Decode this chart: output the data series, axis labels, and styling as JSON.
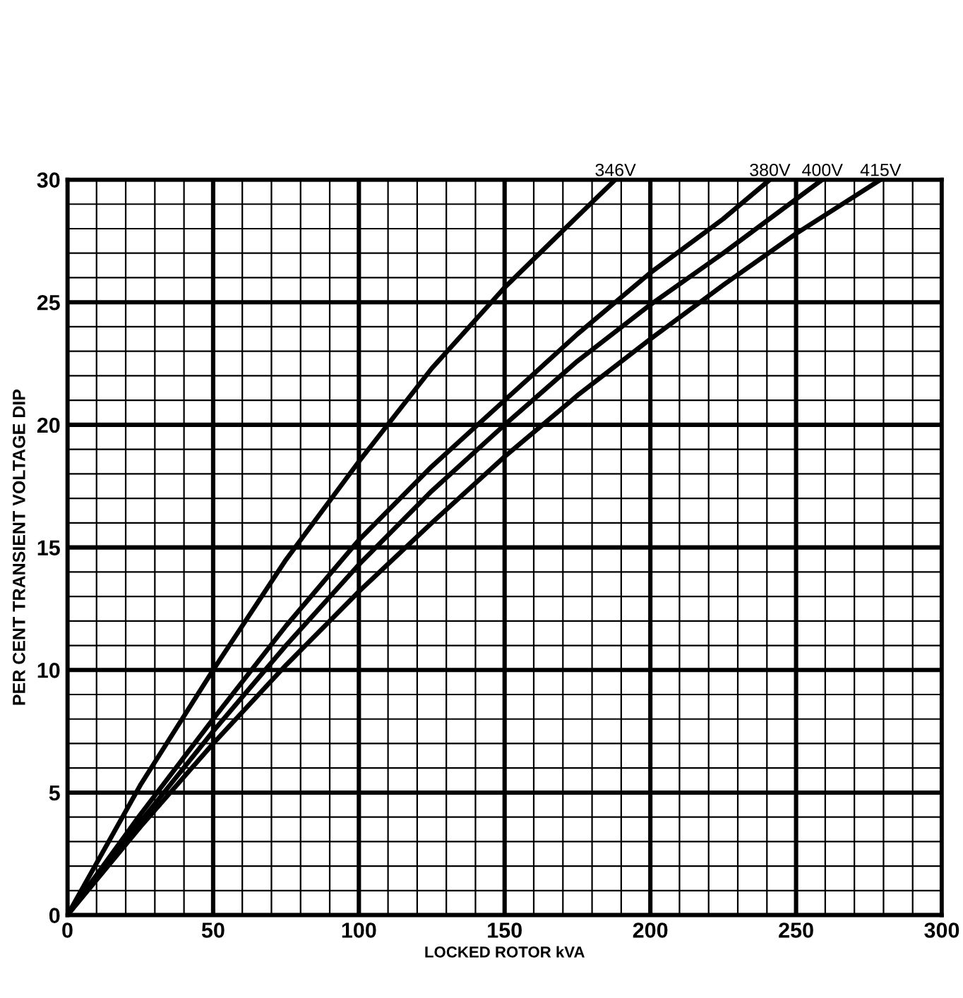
{
  "chart_data": {
    "type": "line",
    "xlabel": "LOCKED ROTOR kVA",
    "ylabel": "PER CENT TRANSIENT VOLTAGE DIP",
    "xlim": [
      0,
      300
    ],
    "ylim": [
      0,
      30
    ],
    "xticks": [
      0,
      {
        "value": 10,
        "label": null
      },
      {
        "value": 20,
        "label": null
      },
      {
        "value": 30,
        "label": null
      },
      {
        "value": 40,
        "label": null
      },
      50,
      {
        "value": 60,
        "label": null
      },
      {
        "value": 70,
        "label": null
      },
      {
        "value": 80,
        "label": null
      },
      {
        "value": 90,
        "label": null
      },
      100,
      {
        "value": 110,
        "label": null
      },
      {
        "value": 120,
        "label": null
      },
      {
        "value": 130,
        "label": null
      },
      {
        "value": 140,
        "label": null
      },
      150,
      {
        "value": 160,
        "label": null
      },
      {
        "value": 170,
        "label": null
      },
      {
        "value": 180,
        "label": null
      },
      {
        "value": 190,
        "label": null
      },
      200,
      {
        "value": 210,
        "label": null
      },
      {
        "value": 220,
        "label": null
      },
      {
        "value": 230,
        "label": null
      },
      {
        "value": 240,
        "label": null
      },
      250,
      {
        "value": 260,
        "label": null
      },
      {
        "value": 270,
        "label": null
      },
      {
        "value": 280,
        "label": null
      },
      {
        "value": 290,
        "label": null
      },
      300
    ],
    "yticks": [
      0,
      {
        "value": 1,
        "label": null
      },
      {
        "value": 2,
        "label": null
      },
      {
        "value": 3,
        "label": null
      },
      {
        "value": 4,
        "label": null
      },
      5,
      {
        "value": 6,
        "label": null
      },
      {
        "value": 7,
        "label": null
      },
      {
        "value": 8,
        "label": null
      },
      {
        "value": 9,
        "label": null
      },
      10,
      {
        "value": 11,
        "label": null
      },
      {
        "value": 12,
        "label": null
      },
      {
        "value": 13,
        "label": null
      },
      {
        "value": 14,
        "label": null
      },
      15,
      {
        "value": 16,
        "label": null
      },
      {
        "value": 17,
        "label": null
      },
      {
        "value": 18,
        "label": null
      },
      {
        "value": 19,
        "label": null
      },
      20,
      {
        "value": 21,
        "label": null
      },
      {
        "value": 22,
        "label": null
      },
      {
        "value": 23,
        "label": null
      },
      {
        "value": 24,
        "label": null
      },
      25,
      {
        "value": 26,
        "label": null
      },
      {
        "value": 27,
        "label": null
      },
      {
        "value": 28,
        "label": null
      },
      {
        "value": 29,
        "label": null
      },
      30
    ],
    "grid": true,
    "marker": "none",
    "line_style": "solid",
    "series": [
      {
        "name": "346V",
        "color": "#000000",
        "x": [
          0,
          25,
          50,
          75,
          100,
          125,
          150,
          175,
          188
        ],
        "values": [
          0,
          5.3,
          10,
          14.5,
          18.5,
          22.3,
          25.6,
          28.5,
          30
        ]
      },
      {
        "name": "380V",
        "color": "#000000",
        "x": [
          0,
          25,
          50,
          75,
          100,
          125,
          150,
          175,
          200,
          225,
          241
        ],
        "values": [
          0,
          4.1,
          8,
          11.8,
          15.3,
          18.3,
          21,
          23.7,
          26.2,
          28.4,
          30
        ]
      },
      {
        "name": "400V",
        "color": "#000000",
        "x": [
          0,
          25,
          50,
          75,
          100,
          125,
          150,
          175,
          200,
          225,
          259
        ],
        "values": [
          0,
          3.8,
          7.5,
          11,
          14.3,
          17.3,
          20,
          22.6,
          24.9,
          27,
          30
        ]
      },
      {
        "name": "415V",
        "color": "#000000",
        "x": [
          0,
          25,
          50,
          75,
          100,
          125,
          150,
          175,
          200,
          225,
          250,
          279
        ],
        "values": [
          0,
          3.6,
          7,
          10.2,
          13.2,
          16,
          18.7,
          21.2,
          23.5,
          25.7,
          27.8,
          30
        ]
      }
    ]
  }
}
